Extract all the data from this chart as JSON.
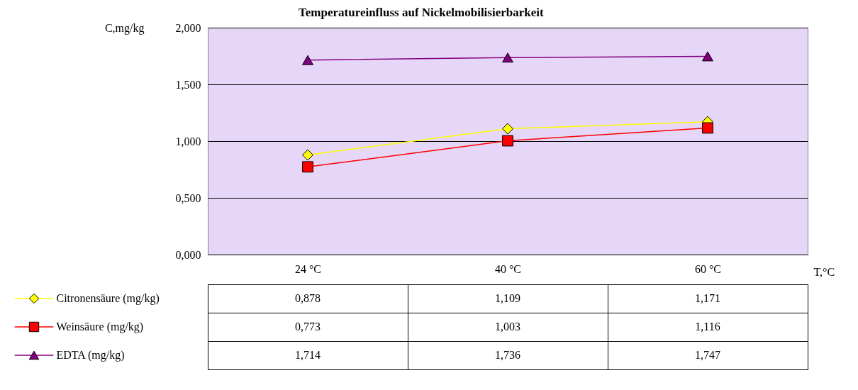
{
  "chart_data": {
    "type": "line",
    "title": "Temperatureinfluss auf Nickelmobilisierbarkeit",
    "xlabel": "T,°C",
    "ylabel": "C,mg/kg",
    "categories": [
      "24  °C",
      "40  °C",
      "60  °C"
    ],
    "ylim": [
      0,
      2
    ],
    "yticks": [
      {
        "value": 0,
        "label": "0,000"
      },
      {
        "value": 0.5,
        "label": "0,500"
      },
      {
        "value": 1,
        "label": "1,000"
      },
      {
        "value": 1.5,
        "label": "1,500"
      },
      {
        "value": 2,
        "label": "2,000"
      }
    ],
    "grid": "y",
    "legend": "bottom left",
    "series": [
      {
        "name": "Citronensäure (mg/kg)",
        "color": "#ffff00",
        "marker": "diamond",
        "values": [
          0.878,
          1.109,
          1.171
        ],
        "value_labels": [
          "0,878",
          "1,109",
          "1,171"
        ]
      },
      {
        "name": "Weinsäure (mg/kg)",
        "color": "#ff0000",
        "marker": "square",
        "values": [
          0.773,
          1.003,
          1.116
        ],
        "value_labels": [
          "0,773",
          "1,003",
          "1,116"
        ]
      },
      {
        "name": "EDTA (mg/kg)",
        "color": "#800080",
        "marker": "triangle",
        "values": [
          1.714,
          1.736,
          1.747
        ],
        "value_labels": [
          "1,714",
          "1,736",
          "1,747"
        ]
      }
    ]
  }
}
